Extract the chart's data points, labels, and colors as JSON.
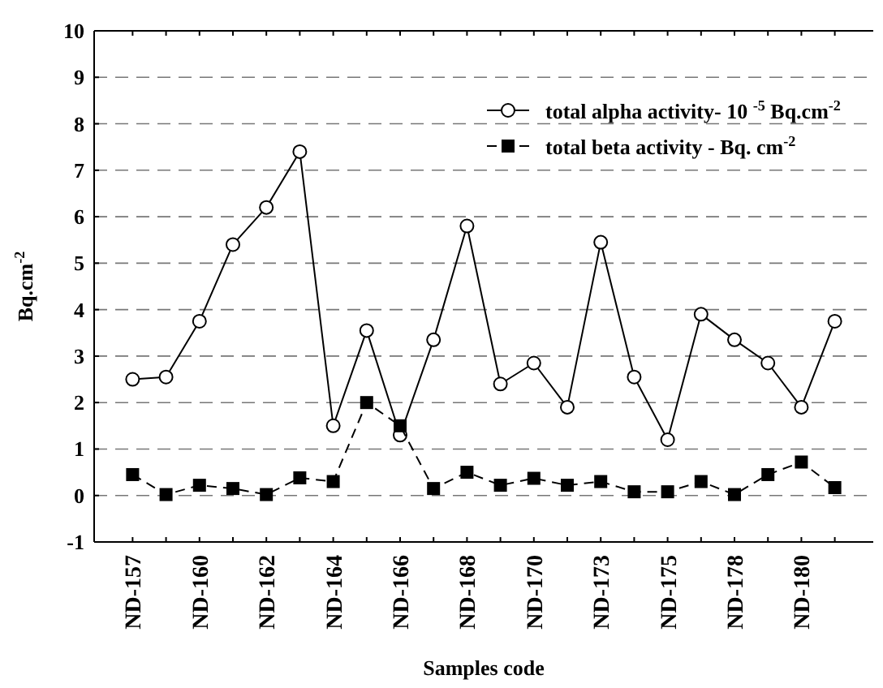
{
  "chart_data": {
    "type": "line",
    "xlabel": "Samples code",
    "ylabel": "Bq.cm$^{-2}$",
    "categories": [
      "ND-157",
      null,
      "ND-160",
      null,
      "ND-162",
      null,
      "ND-164",
      null,
      "ND-166",
      null,
      "ND-168",
      null,
      "ND-170",
      null,
      "ND-173",
      null,
      "ND-175",
      null,
      "ND-178",
      null,
      "ND-180",
      null
    ],
    "ylim": [
      -1,
      10
    ],
    "yticks": [
      -1,
      0,
      1,
      2,
      3,
      4,
      5,
      6,
      7,
      8,
      9,
      10
    ],
    "grid": "y",
    "legend": "top right",
    "series": [
      {
        "name": "total alpha activity- 10 $^{-5}$ Bq.cm$^{-2}$",
        "color": "#000000",
        "marker": "circle",
        "line_style": "solid",
        "values": [
          2.5,
          2.55,
          3.75,
          5.4,
          6.2,
          7.4,
          1.5,
          3.55,
          1.3,
          3.35,
          5.8,
          2.4,
          2.85,
          1.9,
          5.45,
          2.55,
          1.2,
          3.9,
          3.35,
          2.85,
          1.9,
          3.75
        ]
      },
      {
        "name": "total beta activity - Bq. cm$^{-2}$",
        "color": "#000000",
        "marker": "square",
        "line_style": "dashed",
        "values": [
          0.45,
          0.02,
          0.22,
          0.15,
          0.02,
          0.38,
          0.3,
          2.0,
          1.5,
          0.15,
          0.5,
          0.22,
          0.37,
          0.22,
          0.3,
          0.08,
          0.08,
          0.3,
          0.02,
          0.45,
          0.72,
          0.17
        ]
      }
    ]
  }
}
